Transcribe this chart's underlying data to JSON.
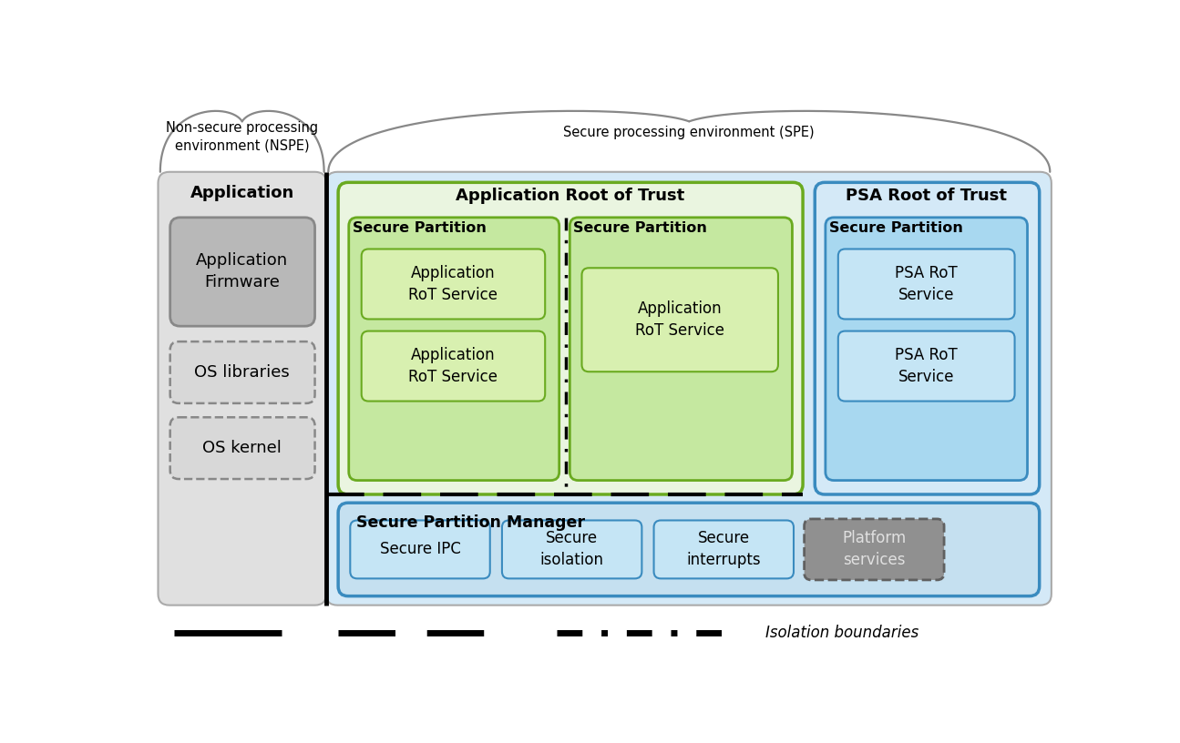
{
  "fig_width": 12.95,
  "fig_height": 8.16,
  "bg_color": "#ffffff",
  "nspe_label": "Non-secure processing\nenvironment (NSPE)",
  "spe_label": "Secure processing environment (SPE)",
  "app_section_label": "Application",
  "arot_section_label": "Application Root of Trust",
  "psa_section_label": "PSA Root of Trust",
  "spm_section_label": "Secure Partition Manager",
  "app_firmware_label": "Application\nFirmware",
  "os_libraries_label": "OS libraries",
  "os_kernel_label": "OS kernel",
  "sec_part1_label": "Secure Partition",
  "sec_part2_label": "Secure Partition",
  "sec_part3_label": "Secure Partition",
  "app_rot_svc1_label": "Application\nRoT Service",
  "app_rot_svc2_label": "Application\nRoT Service",
  "app_rot_svc3_label": "Application\nRoT Service",
  "psa_rot_svc1_label": "PSA RoT\nService",
  "psa_rot_svc2_label": "PSA RoT\nService",
  "sec_ipc_label": "Secure IPC",
  "sec_iso_label": "Secure\nisolation",
  "sec_int_label": "Secure\ninterrupts",
  "plat_svc_label": "Platform\nservices",
  "isolation_label": "Isolation boundaries",
  "nspe_bg": "#e0e0e0",
  "spe_bg": "#d4e9f7",
  "arot_bg": "#eaf5e0",
  "arot_border": "#6aaa20",
  "green_part_bg": "#c5e8a0",
  "green_part_border": "#6aaa20",
  "green_svc_bg": "#d8f0b0",
  "blue_part_bg": "#a8d8f0",
  "blue_part_border": "#3a8bbf",
  "blue_svc_bg": "#c5e5f5",
  "spm_bg": "#c5e0f0",
  "spm_border": "#3a8bbf",
  "gray_solid_bg": "#b8b8b8",
  "gray_solid_border": "#888888",
  "gray_dashed_bg": "#d8d8d8",
  "gray_dashed_border": "#888888",
  "dark_gray_bg": "#909090",
  "dark_gray_border": "#606060",
  "brace_color": "#888888",
  "line_color": "#000000"
}
